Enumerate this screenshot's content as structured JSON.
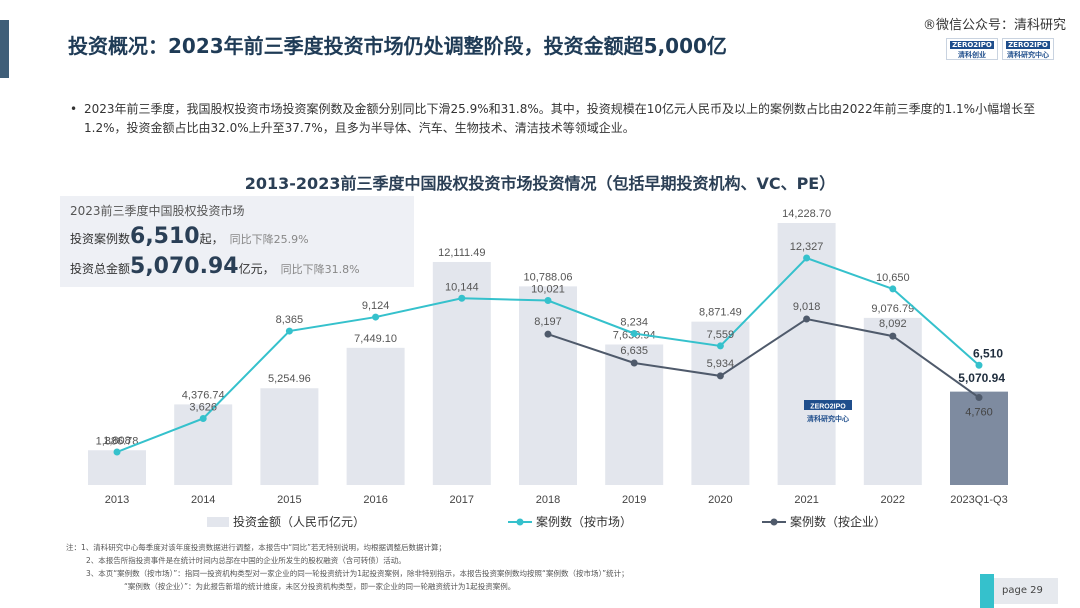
{
  "header": {
    "title": "投资概况：2023年前三季度投资市场仍处调整阶段，投资金额超5,000亿",
    "watermark": "®微信公众号：清科研究",
    "logo1_badge": "ZERO2IPO",
    "logo1_text": "清科创业",
    "logo2_badge": "ZERO2IPO",
    "logo2_text": "清科研究中心"
  },
  "bullet": "2023年前三季度，我国股权投资市场投资案例数及金额分别同比下滑25.9%和31.8%。其中，投资规模在10亿元人民币及以上的案例数占比由2022年前三季度的1.1%小幅增长至1.2%，投资金额占比由32.0%上升至37.7%，且多为半导体、汽车、生物技术、清洁技术等领域企业。",
  "summary": {
    "heading": "2023前三季度中国股权投资市场",
    "cases_label": "投资案例数",
    "cases_value": "6,510",
    "cases_unit": "起，",
    "cases_change": "同比下降25.9%",
    "amount_label": "投资总金额",
    "amount_value": "5,070.94",
    "amount_unit": "亿元，",
    "amount_change": "同比下降31.8%"
  },
  "chart_data": {
    "type": "bar",
    "title": "2013-2023前三季度中国股权投资市场投资情况（包括早期投资机构、VC、PE）",
    "categories": [
      "2013",
      "2014",
      "2015",
      "2016",
      "2017",
      "2018",
      "2019",
      "2020",
      "2021",
      "2022",
      "2023Q1-Q3"
    ],
    "series": [
      {
        "name": "投资金额（人民币亿元）",
        "kind": "bar",
        "values": [
          1886.78,
          4376.74,
          5254.96,
          7449.1,
          12111.49,
          10788.06,
          7630.94,
          8871.49,
          14228.7,
          9076.79,
          5070.94
        ],
        "labels": [
          "1,886.78",
          "4,376.74",
          "5,254.96",
          "7,449.10",
          "12,111.49",
          "10,788.06",
          "7,630.94",
          "8,871.49",
          "14,228.70",
          "9,076.79",
          "5,070.94"
        ]
      },
      {
        "name": "案例数（按市场）",
        "kind": "line",
        "values": [
          1808,
          3626,
          8365,
          9124,
          10144,
          10021,
          8234,
          7559,
          12327,
          10650,
          6510
        ],
        "labels": [
          "1,808",
          "3,626",
          "8,365",
          "9,124",
          "10,144",
          "10,021",
          "8,234",
          "7,559",
          "12,327",
          "10,650",
          "6,510"
        ]
      },
      {
        "name": "案例数（按企业）",
        "kind": "line",
        "values": [
          null,
          null,
          null,
          null,
          null,
          8197,
          6635,
          5934,
          9018,
          8092,
          4760
        ],
        "labels": [
          "",
          "",
          "",
          "",
          "",
          "8,197",
          "6,635",
          "5,934",
          "9,018",
          "8,092",
          "4,760"
        ]
      }
    ],
    "colors": {
      "bar": "#e3e6ed",
      "bar_highlight": "#7e8ba0",
      "market_line": "#35c1cc",
      "enterprise_line": "#4f5a6b"
    },
    "legend_position": "bottom",
    "grid": false
  },
  "notes": {
    "l1": "注：1、清科研究中心每季度对该年度投资数据进行调整，本报告中“同比”若无特别说明，均根据调整后数据计算；",
    "l2": "2、本报告所指投资事件是在统计时间内总部在中国的企业所发生的股权融资（含可转债）活动。",
    "l3": "3、本页“案例数（按市场）”：指同一投资机构类型对一家企业的同一轮投资统计为1起投资案例，除非特别指示，本报告投资案例数均按照“案例数（按市场）”统计；",
    "l4": "“案例数（按企业）”：为此报告新增的统计维度，未区分投资机构类型，即一家企业的同一轮融资统计为1起投资案例。"
  },
  "page": "page  29"
}
